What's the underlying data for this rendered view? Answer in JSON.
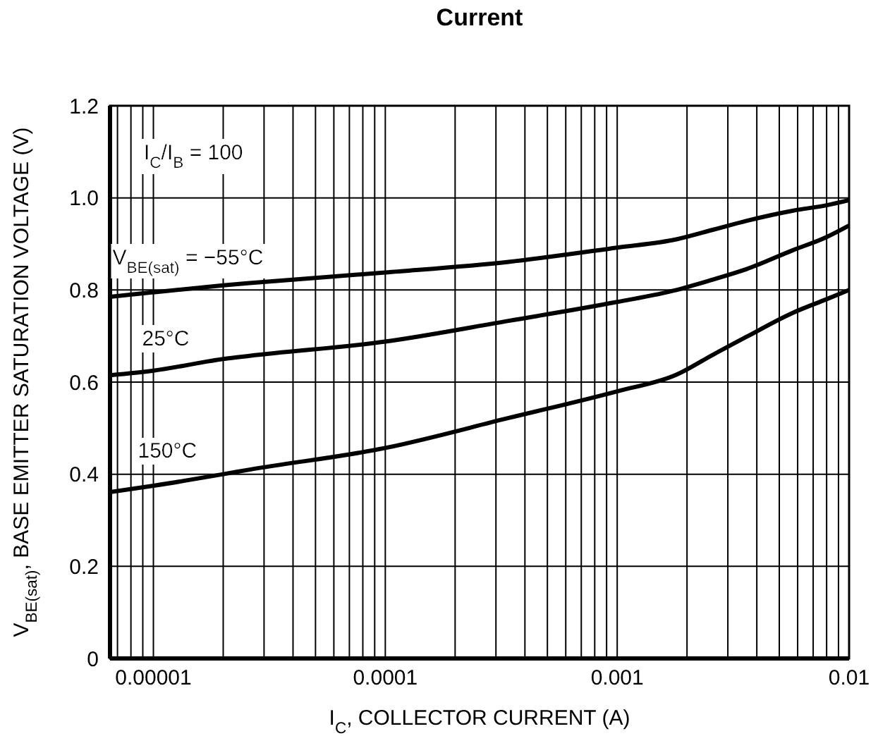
{
  "chart_data": {
    "type": "line",
    "title": "Current",
    "xlabel": "I$_{C}$, COLLECTOR CURRENT (A)",
    "ylabel": "V$_{BE(sat)}$, BASE EMITTER SATURATION VOLTAGE (V)",
    "annotations": [
      "I$_{C}$/I$_{B}$ = 100"
    ],
    "log": "x",
    "grid": true,
    "marker": "none",
    "line_style": "solid",
    "xlim": [
      6.5e-06,
      0.01
    ],
    "xticks": [
      {
        "value": 7e-06,
        "label": null
      },
      {
        "value": 8e-06,
        "label": null
      },
      {
        "value": 9e-06,
        "label": null
      },
      {
        "value": 1e-05,
        "label": "0.00001"
      },
      {
        "value": 2e-05,
        "label": null
      },
      {
        "value": 3e-05,
        "label": null
      },
      {
        "value": 4e-05,
        "label": null
      },
      {
        "value": 5e-05,
        "label": null
      },
      {
        "value": 6e-05,
        "label": null
      },
      {
        "value": 7e-05,
        "label": null
      },
      {
        "value": 8e-05,
        "label": null
      },
      {
        "value": 9e-05,
        "label": null
      },
      {
        "value": 0.0001,
        "label": "0.0001"
      },
      {
        "value": 0.0002,
        "label": null
      },
      {
        "value": 0.0003,
        "label": null
      },
      {
        "value": 0.0004,
        "label": null
      },
      {
        "value": 0.0005,
        "label": null
      },
      {
        "value": 0.0006,
        "label": null
      },
      {
        "value": 0.0007,
        "label": null
      },
      {
        "value": 0.0008,
        "label": null
      },
      {
        "value": 0.0009,
        "label": null
      },
      {
        "value": 0.001,
        "label": "0.001"
      },
      {
        "value": 0.002,
        "label": null
      },
      {
        "value": 0.003,
        "label": null
      },
      {
        "value": 0.004,
        "label": null
      },
      {
        "value": 0.005,
        "label": null
      },
      {
        "value": 0.006,
        "label": null
      },
      {
        "value": 0.007,
        "label": null
      },
      {
        "value": 0.008,
        "label": null
      },
      {
        "value": 0.009,
        "label": null
      },
      {
        "value": 0.01,
        "label": "0.01"
      }
    ],
    "ylim": [
      0,
      1.2
    ],
    "yticks": [
      0,
      0.2,
      0.4,
      0.6,
      0.8,
      {
        "value": 1,
        "label": "1.0"
      },
      1.2
    ],
    "x": [
      6.5e-06,
      1e-05,
      2e-05,
      2.6e-05,
      0.0001,
      0.00034,
      0.001,
      0.0018,
      0.0026,
      0.0036,
      0.0057,
      0.008,
      0.01
    ],
    "series": [
      {
        "name": "V$_{BE(sat)}$ = −55°C",
        "color": "#000000",
        "values": [
          0.785,
          0.795,
          0.81,
          0.815,
          0.838,
          0.861,
          0.892,
          0.91,
          0.931,
          0.95,
          0.972,
          0.984,
          0.995
        ]
      },
      {
        "name": "25°C",
        "color": "#000000",
        "values": [
          0.615,
          0.625,
          0.65,
          0.657,
          0.688,
          0.733,
          0.774,
          0.8,
          0.823,
          0.845,
          0.886,
          0.915,
          0.94
        ]
      },
      {
        "name": "150°C",
        "color": "#000000",
        "values": [
          0.361,
          0.375,
          0.4,
          0.41,
          0.457,
          0.522,
          0.58,
          0.616,
          0.66,
          0.698,
          0.75,
          0.78,
          0.8
        ]
      }
    ]
  }
}
